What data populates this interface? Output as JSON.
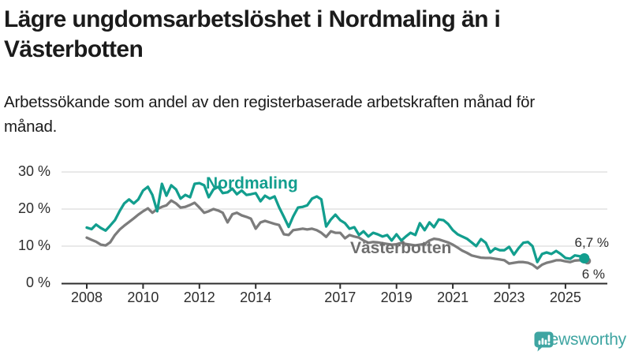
{
  "header": {
    "title": "Lägre ungdomsarbetslöshet i Nordmaling än i Västerbotten",
    "subtitle": "Arbetssökande som andel av den registerbaserade arbetskraften månad för månad."
  },
  "branding": {
    "logo_text": "Newsworthy",
    "logo_icon": "bar-chart-speech-bubble-icon",
    "brand_color": "#3fa5a2"
  },
  "colors": {
    "nordmaling_line": "#129e8e",
    "vasterbotten_line": "#7c7c7c",
    "vasterbotten_label": "#6e6e6e",
    "gridline": "#dcdcdc",
    "axis": "#2e2e2e",
    "text": "#1b1b1b"
  },
  "chart_data": {
    "type": "line",
    "title": "Lägre ungdomsarbetslöshet i Nordmaling än i Västerbotten",
    "subtitle": "Arbetssökande som andel av den registerbaserade arbetskraften månad för månad.",
    "grid": "horizontal",
    "legend": "inline-labels",
    "y_axis": {
      "ticks": [
        0,
        10,
        20,
        30
      ],
      "labels": [
        "0 %",
        "10 %",
        "20 %",
        "30 %"
      ],
      "range": [
        0,
        32
      ],
      "unit": "%"
    },
    "x_axis": {
      "ticks": [
        2008,
        2010,
        2012,
        2014,
        2017,
        2019,
        2021,
        2023,
        2025
      ],
      "labels": [
        "2008",
        "2010",
        "2012",
        "2014",
        "2017",
        "2019",
        "2021",
        "2023",
        "2025"
      ],
      "range": [
        2007.5,
        2026.3
      ]
    },
    "x": [
      2008,
      2008.17,
      2008.33,
      2008.5,
      2008.67,
      2008.83,
      2009,
      2009.17,
      2009.33,
      2009.5,
      2009.67,
      2009.83,
      2010,
      2010.17,
      2010.33,
      2010.5,
      2010.67,
      2010.83,
      2011,
      2011.17,
      2011.33,
      2011.5,
      2011.67,
      2011.83,
      2012,
      2012.17,
      2012.33,
      2012.5,
      2012.67,
      2012.83,
      2013,
      2013.17,
      2013.33,
      2013.5,
      2013.67,
      2013.83,
      2014,
      2014.17,
      2014.33,
      2014.5,
      2014.67,
      2014.83,
      2015,
      2015.17,
      2015.33,
      2015.5,
      2015.67,
      2015.83,
      2016,
      2016.17,
      2016.33,
      2016.5,
      2016.67,
      2016.83,
      2017,
      2017.17,
      2017.33,
      2017.5,
      2017.67,
      2017.83,
      2018,
      2018.17,
      2018.33,
      2018.5,
      2018.67,
      2018.83,
      2019,
      2019.17,
      2019.33,
      2019.5,
      2019.67,
      2019.83,
      2020,
      2020.17,
      2020.33,
      2020.5,
      2020.67,
      2020.83,
      2021,
      2021.17,
      2021.33,
      2021.5,
      2021.67,
      2021.83,
      2022,
      2022.17,
      2022.33,
      2022.5,
      2022.67,
      2022.83,
      2023,
      2023.17,
      2023.33,
      2023.5,
      2023.67,
      2023.83,
      2024,
      2024.17,
      2024.33,
      2024.5,
      2024.67,
      2024.83,
      2025,
      2025.17,
      2025.33,
      2025.5,
      2025.67
    ],
    "series": [
      {
        "name": "Nordmaling",
        "color": "#129e8e",
        "end_label": "6,7 %",
        "end_value": 6.7,
        "values": [
          15.0,
          14.6,
          15.8,
          14.9,
          14.2,
          15.5,
          17.0,
          19.5,
          21.5,
          22.6,
          21.5,
          22.6,
          25.0,
          26.0,
          23.8,
          19.4,
          26.8,
          23.6,
          26.4,
          25.3,
          22.8,
          23.8,
          23.2,
          26.8,
          27.0,
          26.4,
          23.2,
          25.3,
          26.0,
          24.3,
          24.5,
          25.5,
          24.0,
          25.0,
          23.8,
          24.0,
          24.3,
          22.1,
          23.6,
          22.8,
          23.4,
          20.5,
          17.9,
          15.2,
          18.0,
          20.4,
          20.6,
          21.0,
          22.8,
          23.4,
          22.6,
          15.3,
          17.2,
          18.5,
          17.0,
          16.2,
          14.7,
          15.1,
          13.0,
          14.0,
          12.6,
          13.6,
          13.2,
          12.6,
          13.0,
          11.5,
          13.2,
          11.5,
          12.6,
          13.6,
          13.0,
          16.2,
          14.3,
          16.4,
          15.1,
          17.2,
          17.0,
          16.0,
          14.3,
          13.2,
          12.6,
          12.0,
          11.0,
          10.0,
          11.9,
          10.9,
          8.3,
          9.4,
          8.9,
          8.9,
          9.8,
          7.7,
          9.4,
          10.9,
          11.1,
          10.0,
          5.7,
          7.9,
          8.3,
          7.9,
          8.7,
          7.9,
          6.8,
          6.6,
          7.5,
          7.3,
          6.7
        ]
      },
      {
        "name": "Västerbotten",
        "color": "#7c7c7c",
        "end_label": "6 %",
        "end_value": 6.0,
        "values": [
          12.3,
          11.7,
          11.2,
          10.4,
          10.2,
          11.0,
          13.0,
          14.5,
          15.5,
          16.5,
          17.5,
          18.5,
          19.4,
          20.2,
          19.0,
          20.0,
          20.6,
          21.0,
          22.3,
          21.5,
          20.4,
          20.6,
          21.1,
          21.7,
          20.4,
          19.0,
          19.4,
          20.0,
          19.6,
          19.0,
          16.4,
          18.6,
          19.0,
          18.3,
          17.9,
          17.4,
          14.7,
          16.4,
          16.8,
          16.4,
          16.0,
          15.7,
          13.2,
          13.0,
          14.3,
          14.5,
          14.7,
          14.5,
          14.7,
          14.3,
          13.6,
          12.5,
          14.0,
          13.6,
          13.6,
          12.1,
          13.0,
          12.6,
          12.3,
          11.5,
          10.9,
          11.1,
          11.0,
          10.8,
          10.6,
          10.4,
          10.5,
          10.9,
          10.6,
          10.4,
          10.2,
          10.4,
          10.6,
          11.5,
          12.0,
          11.8,
          11.4,
          11.0,
          10.4,
          9.6,
          8.8,
          8.2,
          7.5,
          7.2,
          6.9,
          6.8,
          6.8,
          6.6,
          6.4,
          6.2,
          5.3,
          5.5,
          5.7,
          5.7,
          5.5,
          5.0,
          4.0,
          5.0,
          5.5,
          5.8,
          6.2,
          6.2,
          5.9,
          5.7,
          6.1,
          6.2,
          6.0
        ]
      }
    ]
  }
}
